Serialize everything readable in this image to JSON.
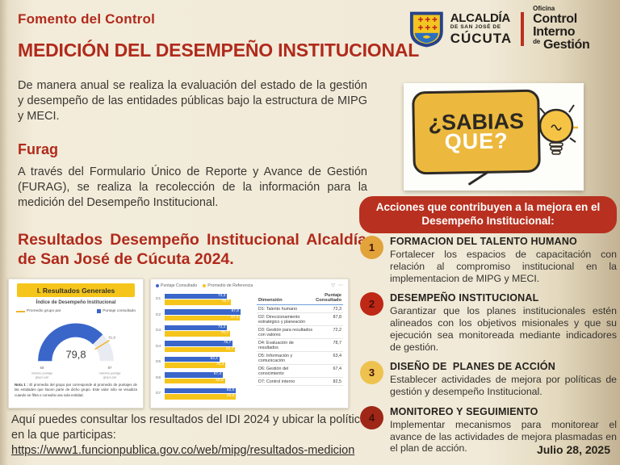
{
  "page": {
    "kicker": "Fomento del Control",
    "title": "MEDICIÓN DEL DESEMPEÑO INSTITUCIONAL",
    "date": "Julio 28, 2025"
  },
  "logo": {
    "alcaldia_line1": "ALCALDÍA",
    "alcaldia_line2": "DE SAN JOSÉ DE",
    "alcaldia_line3": "CÚCUTA",
    "oficina_line1": "Oficina",
    "oficina_line2": "Control Interno",
    "oficina_line3_small": "de",
    "oficina_line3": "Gestión"
  },
  "intro": "De manera anual se realiza la evaluación del estado de la gestión y desempeño de las entidades públicas bajo la estructura de MIPG y MECI.",
  "furag": {
    "heading": "Furag",
    "body": "A través del Formulario Único de Reporte y Avance de Gestión (FURAG), se realiza la recolección de la información para la medición del Desempeño Institucional."
  },
  "resultados_heading": "Resultados Desempeño Institucional Alcaldía de San José de Cúcuta 2024.",
  "sabias_que": {
    "line1": "¿SABIAS",
    "line2": "QUE?"
  },
  "acciones": {
    "banner": "Acciones que contribuyen a la mejora en el Desempeño Institucional:",
    "items": [
      {
        "number": "1",
        "badge_color": "#e2a33b",
        "title": "FORMACION DEL TALENTO HUMANO",
        "body": "Fortalecer los espacios de capacitación con relación al compromiso institucional en la implementacion de MIPG y MECI."
      },
      {
        "number": "2",
        "badge_color": "#bf2717",
        "title": "DESEMPEÑO INSTITUCIONAL",
        "body": "Garantizar que los planes institucionales estén alineados con los objetivos misionales y que su ejecución sea monitoreada mediante indicadores de gestión."
      },
      {
        "number": "3",
        "badge_color": "#eec24f",
        "title": "DISEÑO DE  PLANES DE ACCIÓN",
        "body": "Establecer actividades de mejora por políticas de gestión y desempeño Institucional."
      },
      {
        "number": "4",
        "badge_color": "#9f2718",
        "title": "MONITOREO Y SEGUIMIENTO",
        "body": "Implementar mecanismos para monitorear el avance de las actividades de mejora plasmadas en el plan de acción."
      }
    ]
  },
  "footer": {
    "text": "Aquí puedes consultar los resultados del IDI 2024 y ubicar la política en la que participas:",
    "link": "https://www1.funcionpublica.gov.co/web/mipg/resultados-medicion"
  },
  "colors": {
    "accent_red": "#b02a1c",
    "banner_red": "#b8301f",
    "chart_blue": "#3a66c9",
    "chart_yellow": "#f6c51b",
    "card_header_yellow": "#f5c51b"
  },
  "chart_data": [
    {
      "type": "gauge",
      "title": "I. Resultados Generales",
      "subtitle": "Índice de Desempeño Institucional",
      "value": 79.8,
      "min": 58,
      "max": 87,
      "target": 81.9,
      "min_caption": "mínimo puntaje grupo par",
      "max_caption": "máximo puntaje grupo par",
      "legend": [
        {
          "label": "Promedio grupo par",
          "color": "#f0b429"
        },
        {
          "label": "Puntaje consultado",
          "color": "#3a66c9"
        }
      ],
      "note_label": "Nota 1 :",
      "note_text": " El promedio del grupo par corresponde al promedio de puntajes de las entidades que hacen parte de dicho grupo. Este valor sólo se visualiza cuando se filtra o consulta una sola entidad."
    },
    {
      "type": "bar",
      "orientation": "horizontal",
      "categories": [
        "D1",
        "D2",
        "D3",
        "D4",
        "D5",
        "D6",
        "D7"
      ],
      "series": [
        {
          "name": "Puntaje Consultado",
          "color": "#3a66c9",
          "values": [
            72.3,
            87.8,
            72.2,
            78.7,
            63.4,
            67.4,
            82.5
          ]
        },
        {
          "name": "Promedio de Referencia",
          "color": "#f6c51b",
          "values": [
            76.7,
            87.3,
            75.7,
            81.7,
            70.3,
            69.8,
            82.6
          ]
        }
      ],
      "xlim": [
        0,
        100
      ],
      "table": {
        "headers": [
          "Dimensión",
          "Puntaje Consultado"
        ],
        "rows": [
          [
            "D1: Talento humano",
            "72,3"
          ],
          [
            "D2: Direccionamiento estratégico y planeación",
            "87,8"
          ],
          [
            "D3: Gestión para resultados con valores",
            "72,2"
          ],
          [
            "D4: Evaluación de resultados",
            "78,7"
          ],
          [
            "D5: Información y comunicación",
            "63,4"
          ],
          [
            "D6: Gestión del conocimiento",
            "67,4"
          ],
          [
            "D7: Control interno",
            "82,5"
          ]
        ]
      }
    }
  ]
}
